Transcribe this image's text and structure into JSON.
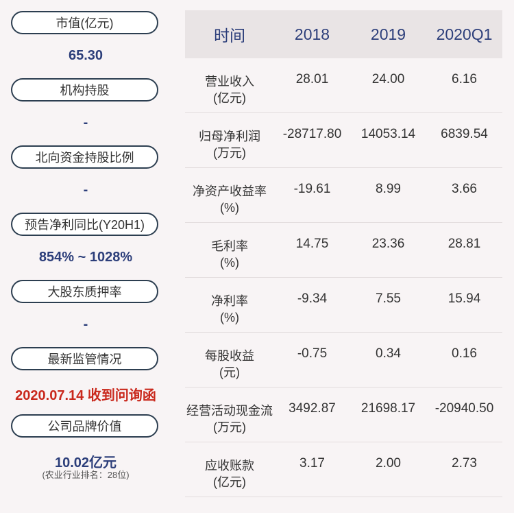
{
  "left_panel": {
    "items": [
      {
        "label": "市值(亿元)",
        "value": "65.30"
      },
      {
        "label": "机构持股",
        "value": "-"
      },
      {
        "label": "北向资金持股比例",
        "value": "-"
      },
      {
        "label": "预告净利同比(Y20H1)",
        "value": "854% ~ 1028%"
      },
      {
        "label": "大股东质押率",
        "value": "-"
      },
      {
        "label": "最新监管情况",
        "value": "2020.07.14 收到问询函"
      },
      {
        "label": "公司品牌价值",
        "value": "10.02亿元",
        "sub": "(农业行业排名：28位)"
      }
    ],
    "colors": {
      "value": "#2c3e7a",
      "alert": "#c9281c"
    }
  },
  "table": {
    "headers": [
      "时间",
      "2018",
      "2019",
      "2020Q1"
    ],
    "rows": [
      {
        "label": "营业收入",
        "unit": "(亿元)",
        "values": [
          "28.01",
          "24.00",
          "6.16"
        ]
      },
      {
        "label": "归母净利润",
        "unit": "(万元)",
        "values": [
          "-28717.80",
          "14053.14",
          "6839.54"
        ]
      },
      {
        "label": "净资产收益率",
        "unit": "(%)",
        "values": [
          "-19.61",
          "8.99",
          "3.66"
        ]
      },
      {
        "label": "毛利率",
        "unit": "(%)",
        "values": [
          "14.75",
          "23.36",
          "28.81"
        ]
      },
      {
        "label": "净利率",
        "unit": "(%)",
        "values": [
          "-9.34",
          "7.55",
          "15.94"
        ]
      },
      {
        "label": "每股收益",
        "unit": "(元)",
        "values": [
          "-0.75",
          "0.34",
          "0.16"
        ]
      },
      {
        "label": "经营活动现金流",
        "unit": "(万元)",
        "values": [
          "3492.87",
          "21698.17",
          "-20940.50"
        ]
      },
      {
        "label": "应收账款",
        "unit": "(亿元)",
        "values": [
          "3.17",
          "2.00",
          "2.73"
        ]
      }
    ]
  }
}
